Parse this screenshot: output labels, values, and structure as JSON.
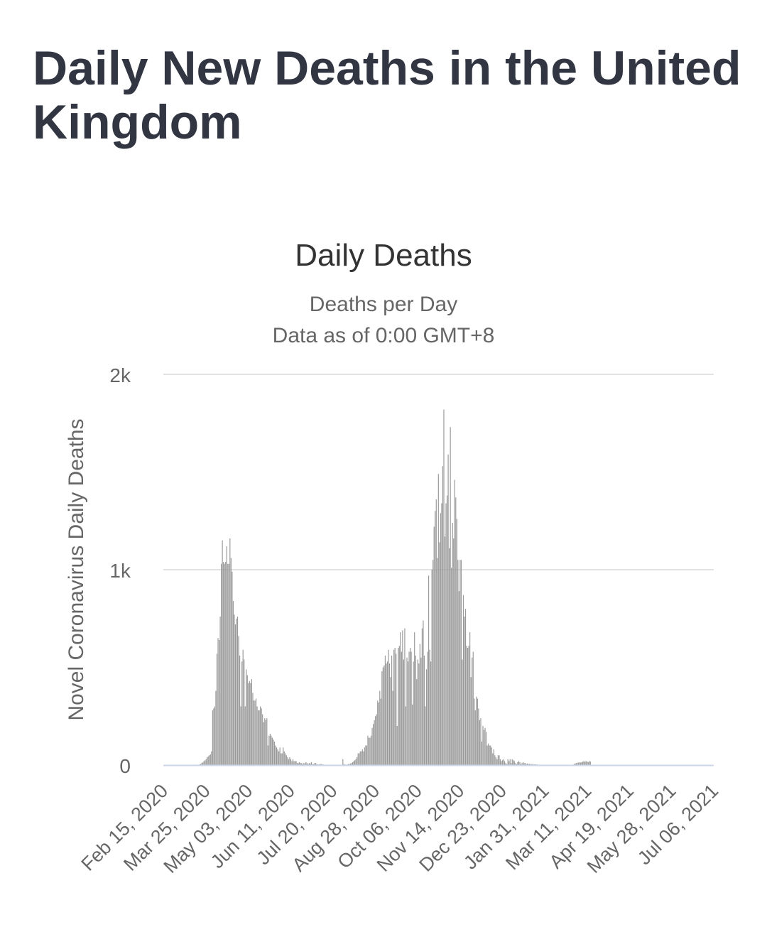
{
  "page": {
    "title": "Daily New Deaths in the United Kingdom"
  },
  "colors": {
    "bar": "#999999",
    "grid": "#e3e3e3",
    "axis": "#ccd6eb",
    "title_text": "#323643",
    "label_text": "#666666"
  },
  "chart_data": {
    "type": "bar",
    "title": "Daily Deaths",
    "subtitle_lines": [
      "Deaths per Day",
      "Data as of 0:00 GMT+8"
    ],
    "xlabel": "",
    "ylabel": "Novel Coronavirus Daily Deaths",
    "ylim": [
      0,
      2000
    ],
    "y_ticks": [
      {
        "value": 0,
        "label": "0"
      },
      {
        "value": 1000,
        "label": "1k"
      },
      {
        "value": 2000,
        "label": "2k"
      }
    ],
    "x_tick_labels": [
      "Feb 15, 2020",
      "Mar 25, 2020",
      "May 03, 2020",
      "Jun 11, 2020",
      "Jul 20, 2020",
      "Aug 28, 2020",
      "Oct 06, 2020",
      "Nov 14, 2020",
      "Dec 23, 2020",
      "Jan 31, 2021",
      "Mar 11, 2021",
      "Apr 19, 2021",
      "May 28, 2021",
      "Jul 06, 2021"
    ],
    "x_tick_interval_days": 39,
    "series": [
      {
        "name": "Daily Deaths",
        "start_date": "Feb 15, 2020",
        "values": [
          0,
          0,
          0,
          0,
          0,
          0,
          0,
          0,
          0,
          0,
          0,
          0,
          0,
          0,
          0,
          0,
          0,
          0,
          0,
          0,
          0,
          0,
          0,
          0,
          0,
          0,
          0,
          0,
          1,
          0,
          0,
          1,
          2,
          3,
          6,
          10,
          14,
          20,
          24,
          30,
          40,
          45,
          50,
          55,
          70,
          280,
          290,
          300,
          380,
          570,
          650,
          640,
          760,
          1030,
          1150,
          1040,
          1030,
          1040,
          1120,
          1030,
          1030,
          1160,
          1060,
          990,
          840,
          770,
          720,
          750,
          760,
          660,
          560,
          300,
          530,
          590,
          540,
          300,
          490,
          460,
          420,
          430,
          420,
          440,
          370,
          330,
          330,
          340,
          300,
          280,
          280,
          300,
          290,
          260,
          220,
          240,
          230,
          240,
          100,
          150,
          160,
          150,
          140,
          130,
          120,
          100,
          90,
          80,
          70,
          90,
          60,
          60,
          90,
          70,
          60,
          50,
          40,
          30,
          40,
          30,
          20,
          30,
          20,
          20,
          20,
          10,
          10,
          15,
          10,
          10,
          5,
          10,
          8,
          15,
          10,
          5,
          10,
          8,
          15,
          5,
          5,
          10,
          10,
          5,
          3,
          3,
          5,
          5,
          3,
          3,
          2,
          2,
          1,
          1,
          1,
          2,
          1,
          1,
          1,
          0,
          1,
          2,
          1,
          1,
          0,
          1,
          2,
          30,
          5,
          3,
          2,
          3,
          5,
          5,
          8,
          10,
          15,
          20,
          25,
          30,
          40,
          60,
          60,
          70,
          70,
          80,
          70,
          90,
          100,
          100,
          150,
          140,
          140,
          150,
          190,
          210,
          230,
          250,
          260,
          330,
          320,
          380,
          340,
          480,
          500,
          510,
          560,
          520,
          530,
          590,
          520,
          450,
          560,
          380,
          590,
          600,
          570,
          200,
          600,
          610,
          680,
          580,
          690,
          540,
          700,
          300,
          550,
          530,
          580,
          600,
          580,
          310,
          530,
          680,
          560,
          440,
          540,
          520,
          620,
          550,
          700,
          740,
          560,
          300,
          490,
          580,
          970,
          590,
          530,
          1000,
          1050,
          1220,
          1300,
          1360,
          1060,
          1490,
          1140,
          1290,
          1340,
          1530,
          1820,
          1170,
          1340,
          1380,
          1590,
          1110,
          1730,
          1010,
          1240,
          1160,
          1460,
          1370,
          1260,
          1050,
          890,
          1050,
          1050,
          540,
          870,
          760,
          800,
          610,
          600,
          610,
          680,
          450,
          550,
          580,
          340,
          280,
          350,
          340,
          290,
          230,
          240,
          120,
          200,
          180,
          190,
          170,
          100,
          110,
          100,
          100,
          90,
          60,
          80,
          50,
          40,
          30,
          50,
          50,
          30,
          20,
          25,
          30,
          20,
          10,
          5,
          30,
          20,
          30,
          10,
          30,
          25,
          20,
          10,
          5,
          15,
          20,
          15,
          5,
          10,
          15,
          10,
          10,
          5,
          8,
          5,
          6,
          4,
          5,
          5,
          3,
          4,
          3,
          3,
          2,
          2,
          2,
          2,
          1,
          1,
          1,
          2,
          1,
          1,
          1,
          1,
          1,
          1,
          2,
          1,
          1,
          1,
          0,
          1,
          2,
          1,
          0,
          1,
          1,
          0,
          2,
          1,
          1,
          1,
          1,
          0,
          1,
          5,
          8,
          10,
          12,
          12,
          14,
          12,
          15,
          17,
          20,
          17,
          20,
          18,
          15,
          20,
          18
        ]
      }
    ]
  }
}
